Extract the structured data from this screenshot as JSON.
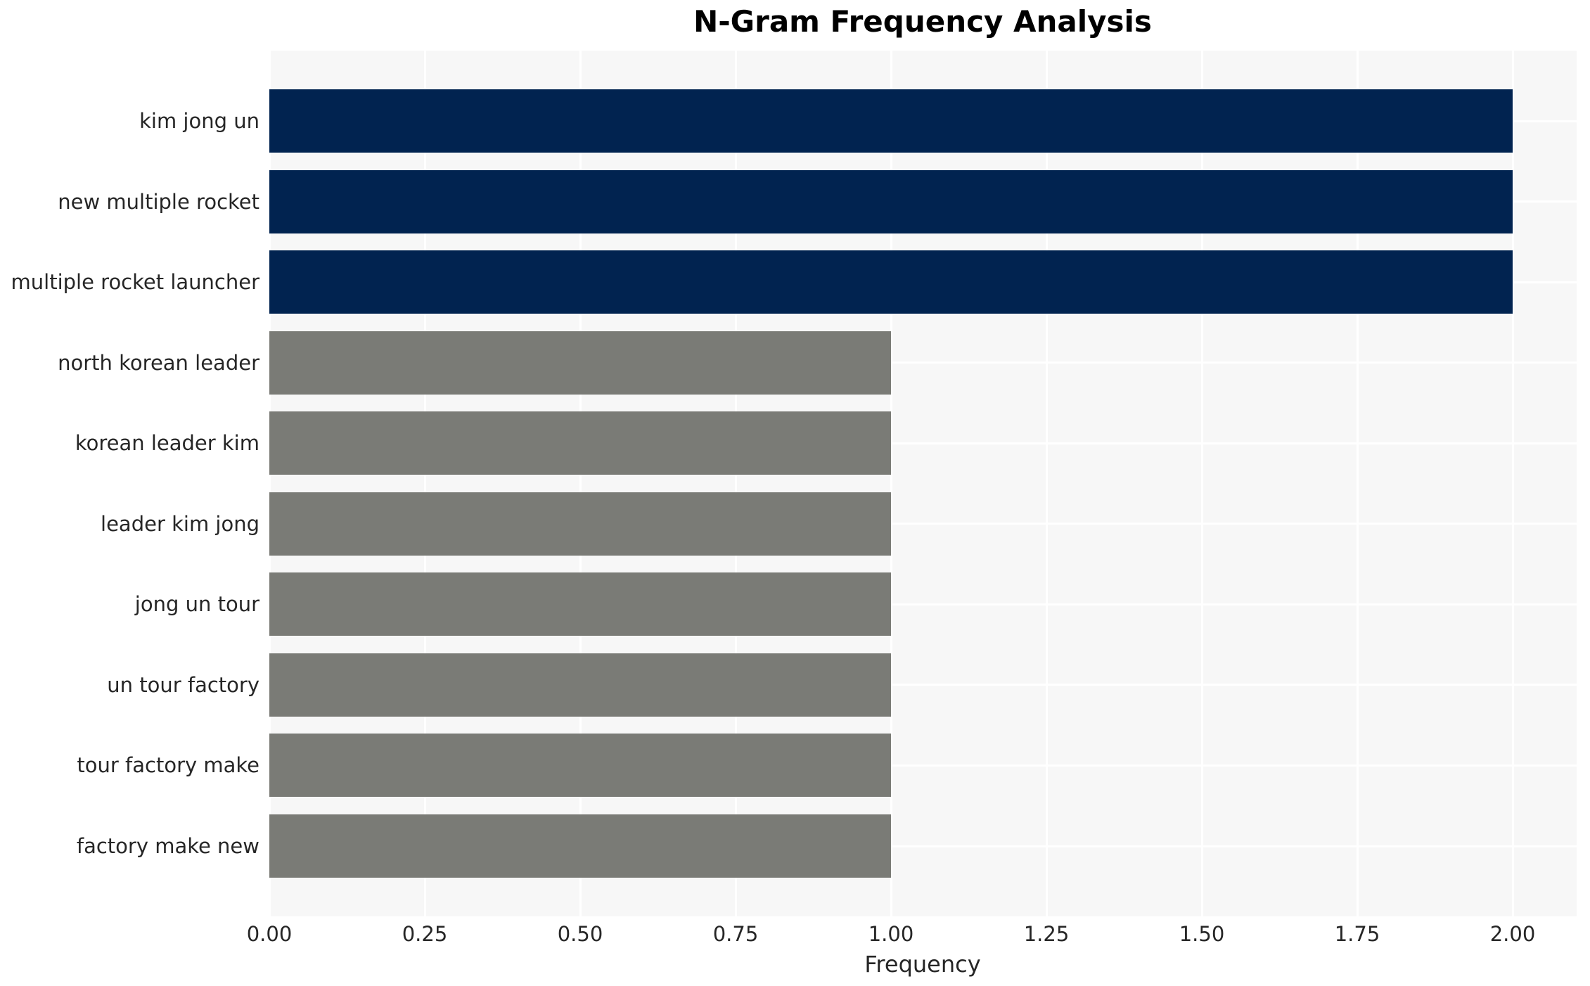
{
  "title": "N-Gram Frequency Analysis",
  "chart_data": {
    "type": "bar",
    "orientation": "horizontal",
    "title": "N-Gram Frequency Analysis",
    "xlabel": "Frequency",
    "ylabel": "",
    "categories": [
      "kim jong un",
      "new multiple rocket",
      "multiple rocket launcher",
      "north korean leader",
      "korean leader kim",
      "leader kim jong",
      "jong un tour",
      "un tour factory",
      "tour factory make",
      "factory make new"
    ],
    "values": [
      2,
      2,
      2,
      1,
      1,
      1,
      1,
      1,
      1,
      1
    ],
    "bar_colors": [
      "#012350",
      "#012350",
      "#012350",
      "#7a7b76",
      "#7a7b76",
      "#7a7b76",
      "#7a7b76",
      "#7a7b76",
      "#7a7b76",
      "#7a7b76"
    ],
    "xlim": [
      0,
      2.1
    ],
    "xticks": [
      0,
      0.25,
      0.5,
      0.75,
      1.0,
      1.25,
      1.5,
      1.75,
      2.0
    ],
    "xtick_labels": [
      "0.00",
      "0.25",
      "0.50",
      "0.75",
      "1.00",
      "1.25",
      "1.50",
      "1.75",
      "2.00"
    ],
    "grid": true,
    "legend": null
  },
  "style": {
    "plot_bg": "#f7f7f7",
    "grid_color": "#ffffff",
    "high_bar_color": "#012350",
    "low_bar_color": "#7a7b76",
    "text_color": "#262626",
    "title_color": "#000000"
  }
}
